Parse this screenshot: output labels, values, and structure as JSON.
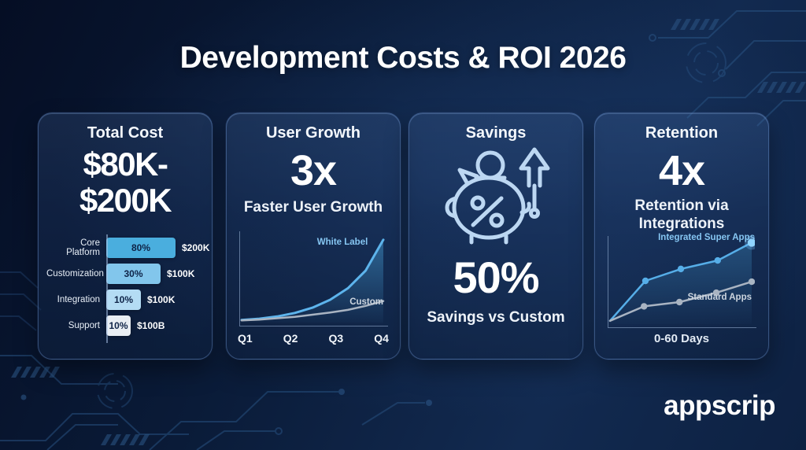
{
  "title": "Development Costs & ROI 2026",
  "logo_text": "appscrip",
  "colors": {
    "background_top": "#050e24",
    "background_bottom": "#122a50",
    "card_border": "rgba(116,156,214,0.40)",
    "accent_blue": "#4fadea",
    "bright_endpoint_blue": "#8fd4ff",
    "light_blue_label": "#86c6f2",
    "gray_line": "#a9b4c2",
    "circuit_line": "#27507f",
    "dark_text_on_bar": "#0e2347"
  },
  "cards": {
    "total_cost": {
      "header": "Total Cost",
      "value_line1": "$80K-",
      "value_line2": "$200K"
    },
    "user_growth": {
      "header": "User Growth",
      "value": "3x",
      "subtitle": "Faster User Growth"
    },
    "savings": {
      "header": "Savings",
      "icon": "piggy-bank-savings-arrow-icon",
      "value": "50%",
      "subtitle": "Savings vs Custom"
    },
    "retention": {
      "header": "Retention",
      "value": "4x",
      "subtitle_line1": "Retention via",
      "subtitle_line2": "Integrations"
    }
  },
  "chart_data": [
    {
      "type": "bar",
      "card": "total_cost",
      "categories": [
        "Core Platform",
        "Customization",
        "Integration",
        "Support"
      ],
      "values": [
        80,
        30,
        10,
        10
      ],
      "pct_labels": [
        "80%",
        "30%",
        "10%",
        "10%"
      ],
      "value_labels": [
        "$200K",
        "$100K",
        "$100K",
        "$100B"
      ],
      "bar_width_fractions": [
        1.0,
        0.78,
        0.5,
        0.35
      ],
      "bar_colors": [
        "#4aaede",
        "#82c6ec",
        "#b4dcf4",
        "#e9eef3"
      ],
      "orientation": "horizontal"
    },
    {
      "type": "line",
      "card": "user_growth",
      "x_ticks": [
        "Q1",
        "Q2",
        "Q3",
        "Q4"
      ],
      "grid": false,
      "series": [
        {
          "name": "White Label",
          "color": "#5db4ec",
          "area_fill": true,
          "y_fractions": [
            0.02,
            0.035,
            0.06,
            0.1,
            0.16,
            0.25,
            0.38,
            0.58,
            0.93
          ]
        },
        {
          "name": "Custom",
          "color": "#a9b4c2",
          "area_fill": false,
          "y_fractions": [
            0.015,
            0.025,
            0.04,
            0.055,
            0.08,
            0.105,
            0.135,
            0.18,
            0.235
          ]
        }
      ]
    },
    {
      "type": "line",
      "card": "retention",
      "xlabel": "0-60 Days",
      "grid": false,
      "series": [
        {
          "name": "Integrated Super Apps",
          "color": "#56aee8",
          "markers": true,
          "area_fill": true,
          "points": [
            [
              0,
              0.03
            ],
            [
              0.25,
              0.5
            ],
            [
              0.5,
              0.64
            ],
            [
              0.76,
              0.74
            ],
            [
              1,
              0.95
            ]
          ]
        },
        {
          "name": "Standard Apps",
          "color": "#a9b4c2",
          "markers": true,
          "area_fill": false,
          "points": [
            [
              0,
              0.03
            ],
            [
              0.24,
              0.2
            ],
            [
              0.49,
              0.25
            ],
            [
              0.75,
              0.36
            ],
            [
              1,
              0.49
            ]
          ]
        }
      ]
    }
  ]
}
